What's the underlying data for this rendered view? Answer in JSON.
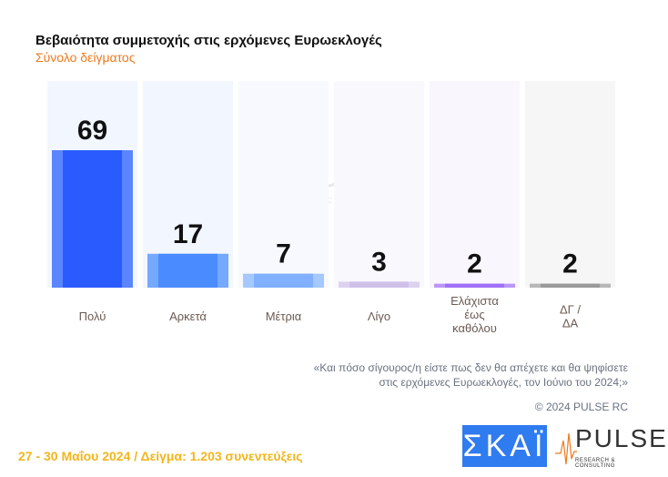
{
  "chart_data": {
    "type": "bar",
    "title": "Βεβαιότητα συμμετοχής στις ερχόμενες Ευρωεκλογές",
    "subtitle": "Σύνολο δείγματος",
    "categories": [
      "Πολύ",
      "Αρκετά",
      "Μέτρια",
      "Λίγο",
      "Ελάχιστα έως καθόλου",
      "ΔΓ / ΔΑ"
    ],
    "category_lines": [
      [
        "Πολύ"
      ],
      [
        "Αρκετά"
      ],
      [
        "Μέτρια"
      ],
      [
        "Λίγο"
      ],
      [
        "Ελάχιστα",
        "έως",
        "καθόλου"
      ],
      [
        "ΔΓ /",
        "ΔΑ"
      ]
    ],
    "values": [
      69,
      17,
      7,
      3,
      2,
      2
    ],
    "data_labels": [
      "69",
      "17",
      "7",
      "3",
      "2",
      "2"
    ],
    "colors": [
      "#2a5bff",
      "#4a8cff",
      "#80b0ff",
      "#cfc0ea",
      "#a070f5",
      "#9a9a9a"
    ],
    "edge_colors": [
      "#5b85ff",
      "#75a8ff",
      "#a5c8ff",
      "#ddd2f0",
      "#bb98f8",
      "#b8b8b8"
    ],
    "column_backgrounds": [
      "#f2f6fe",
      "#f2f6fe",
      "#f7f9fe",
      "#f9f8fd",
      "#f9f6fe",
      "#f6f6f6"
    ],
    "ylim": [
      0,
      100
    ],
    "grid": false
  },
  "header": {
    "title": "Βεβαιότητα συμμετοχής στις ερχόμενες Ευρωεκλογές",
    "subtitle": "Σύνολο δείγματος"
  },
  "question": [
    "«Και πόσο σίγουρος/η είστε πως δεν θα απέχετε και θα ψηφίσετε",
    "στις ερχόμενες Ευρωεκλογές, τον Ιούνιο του 2024;»"
  ],
  "copyright": "© 2024 PULSE RC",
  "footer": "27 - 30  Μαΐου 2024  /  Δείγμα:  1.203 συνεντεύξεις",
  "logos": {
    "skai": "ΣΚΑΪ",
    "pulse": "PULSE",
    "pulse_sub": "RESEARCH & CONSULTING"
  }
}
